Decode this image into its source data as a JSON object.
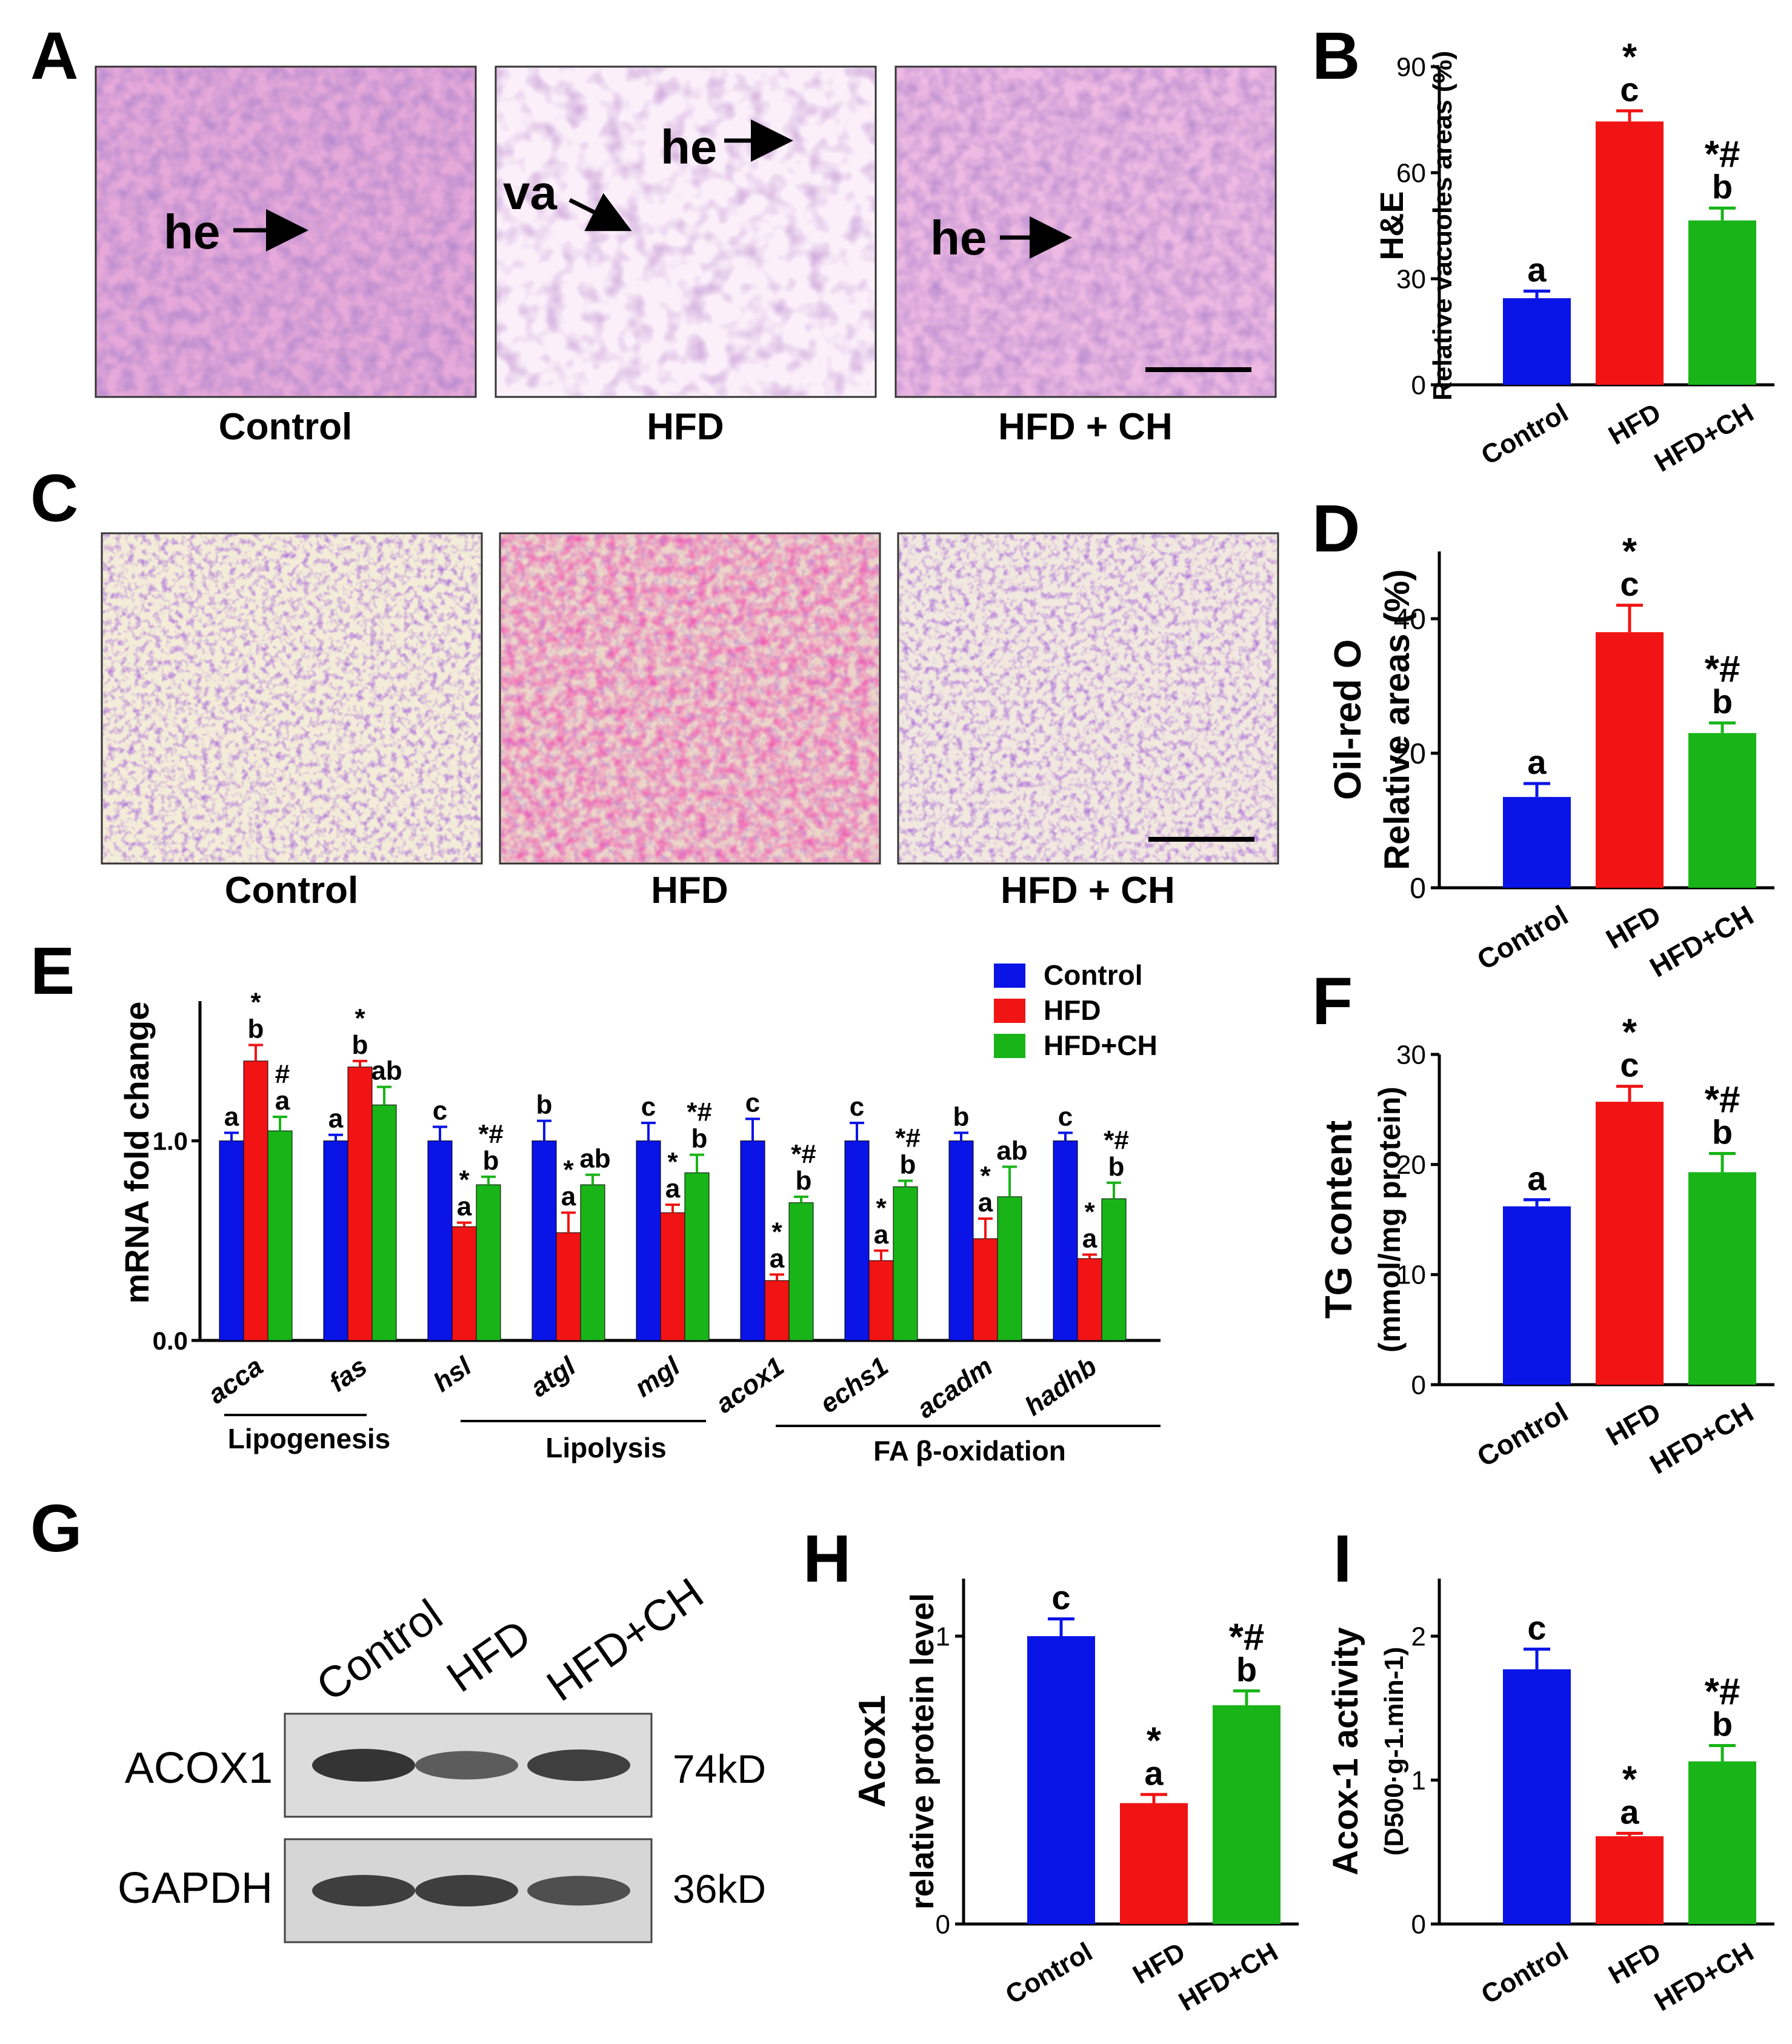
{
  "colors": {
    "control": "#0a14e6",
    "hfd": "#f01414",
    "hfdch": "#18b418",
    "axis": "#000000"
  },
  "panel_letters": [
    "A",
    "B",
    "C",
    "D",
    "E",
    "F",
    "G",
    "H",
    "I"
  ],
  "panel_a": {
    "captions": [
      "Control",
      "HFD",
      "HFD + CH"
    ],
    "annotations": [
      "he",
      "va",
      "he",
      "he"
    ]
  },
  "panel_c": {
    "captions": [
      "Control",
      "HFD",
      "HFD + CH"
    ]
  },
  "panel_e": {
    "legend": [
      "Control",
      "HFD",
      "HFD+CH"
    ],
    "groups": [
      "Lipogenesis",
      "Lipolysis",
      "FA β-oxidation"
    ]
  },
  "panel_g": {
    "lanes": [
      "Control",
      "HFD",
      "HFD+CH"
    ],
    "rows": [
      {
        "name": "ACOX1",
        "size": "74kD",
        "intensity": [
          0.9,
          0.55,
          0.8
        ]
      },
      {
        "name": "GAPDH",
        "size": "36kD",
        "intensity": [
          0.8,
          0.8,
          0.65
        ]
      }
    ]
  },
  "chart_data": [
    {
      "panel": "B",
      "type": "bar",
      "ylabel": "H&E",
      "ylabel2": "Relative vacuoles areas (%)",
      "categories": [
        "Control",
        "HFD",
        "HFD+CH"
      ],
      "values": [
        24.5,
        74.5,
        46.5
      ],
      "errors": [
        2,
        3,
        3.5
      ],
      "letters": [
        "a",
        "c",
        "b"
      ],
      "stars": [
        "",
        "*",
        "*#"
      ],
      "ylim": [
        0,
        90
      ],
      "yticks": [
        "0",
        "30",
        "60",
        "90"
      ]
    },
    {
      "panel": "D",
      "type": "bar",
      "ylabel": "Oil-red O",
      "ylabel2": "Relative areas (%)",
      "categories": [
        "Control",
        "HFD",
        "HFD+CH"
      ],
      "values": [
        13.5,
        38,
        23
      ],
      "errors": [
        2,
        4,
        1.5
      ],
      "letters": [
        "a",
        "c",
        "b"
      ],
      "stars": [
        "",
        "*",
        "*#"
      ],
      "ylim": [
        0,
        50
      ],
      "yticks": [
        "0",
        "20",
        "40"
      ]
    },
    {
      "panel": "E",
      "type": "bar",
      "ylabel": "mRNA fold change",
      "categories": [
        "acca",
        "fas",
        "hsl",
        "atgl",
        "mgl",
        "acox1",
        "echs1",
        "acadm",
        "hadhb"
      ],
      "series": [
        {
          "name": "Control",
          "values": [
            1.0,
            1.0,
            1.0,
            1.0,
            1.0,
            1.0,
            1.0,
            1.0,
            1.0
          ],
          "errors": [
            0.04,
            0.03,
            0.07,
            0.1,
            0.09,
            0.11,
            0.09,
            0.04,
            0.04
          ]
        },
        {
          "name": "HFD",
          "values": [
            1.4,
            1.37,
            0.57,
            0.54,
            0.64,
            0.3,
            0.4,
            0.51,
            0.41
          ],
          "errors": [
            0.08,
            0.03,
            0.02,
            0.1,
            0.04,
            0.03,
            0.05,
            0.1,
            0.02
          ]
        },
        {
          "name": "HFD+CH",
          "values": [
            1.05,
            1.18,
            0.78,
            0.78,
            0.84,
            0.69,
            0.77,
            0.72,
            0.71
          ],
          "errors": [
            0.07,
            0.09,
            0.04,
            0.05,
            0.09,
            0.03,
            0.03,
            0.15,
            0.08
          ]
        }
      ],
      "labels": [
        [
          "a",
          "*\nb",
          "#\na"
        ],
        [
          "a",
          "*\nb",
          "ab"
        ],
        [
          "c",
          "*\na",
          "*#\nb"
        ],
        [
          "b",
          "*\na",
          "ab"
        ],
        [
          "c",
          "*\na",
          "*#\nb"
        ],
        [
          "c",
          "*\na",
          "*#\nb"
        ],
        [
          "c",
          "*\na",
          "*#\nb"
        ],
        [
          "b",
          "*\na",
          "ab"
        ],
        [
          "c",
          "*\na",
          "*#\nb"
        ]
      ],
      "ylim": [
        0,
        1.7
      ],
      "yticks": [
        "0.0",
        "1.0"
      ]
    },
    {
      "panel": "F",
      "type": "bar",
      "ylabel": "TG content",
      "ylabel2": "(mmol/mg protein)",
      "categories": [
        "Control",
        "HFD",
        "HFD+CH"
      ],
      "values": [
        16.2,
        25.7,
        19.3
      ],
      "errors": [
        0.6,
        1.4,
        1.7
      ],
      "letters": [
        "a",
        "c",
        "b"
      ],
      "stars": [
        "",
        "*",
        "*#"
      ],
      "ylim": [
        0,
        30
      ],
      "yticks": [
        "0",
        "10",
        "20",
        "30"
      ]
    },
    {
      "panel": "H",
      "type": "bar",
      "ylabel": "Acox1",
      "ylabel2": "relative protein level",
      "categories": [
        "Control",
        "HFD",
        "HFD+CH"
      ],
      "values": [
        1.0,
        0.42,
        0.76
      ],
      "errors": [
        0.06,
        0.03,
        0.05
      ],
      "letters": [
        "c",
        "a",
        "b"
      ],
      "stars": [
        "",
        "*",
        "*#"
      ],
      "ylim": [
        0,
        1.2
      ],
      "yticks": [
        "0",
        "1"
      ]
    },
    {
      "panel": "I",
      "type": "bar",
      "ylabel": "Acox-1 activity",
      "ylabel2": "(D500·g-1.min-1)",
      "categories": [
        "Control",
        "HFD",
        "HFD+CH"
      ],
      "values": [
        1.77,
        0.61,
        1.13
      ],
      "errors": [
        0.14,
        0.02,
        0.11
      ],
      "letters": [
        "c",
        "a",
        "b"
      ],
      "stars": [
        "",
        "*",
        "*#"
      ],
      "ylim": [
        0,
        2.4
      ],
      "yticks": [
        "0",
        "1",
        "2"
      ]
    }
  ]
}
